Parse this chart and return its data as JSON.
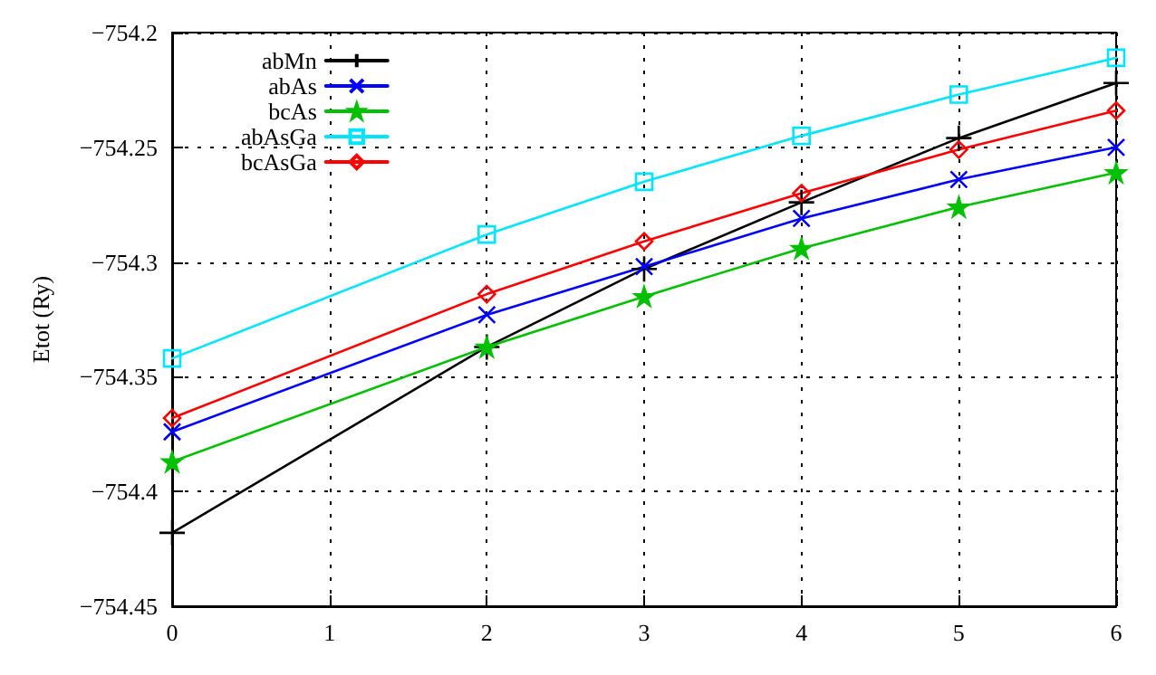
{
  "chart_data": {
    "type": "line",
    "ylabel": "Etot (Ry)",
    "xlim": [
      0,
      6
    ],
    "xticks": [
      0,
      1,
      2,
      3,
      4,
      5,
      6
    ],
    "ylim": [
      -754.45,
      -754.2
    ],
    "yticks": [
      {
        "value": -754.45,
        "label": "−754.45"
      },
      {
        "value": -754.4,
        "label": "−754.4"
      },
      {
        "value": -754.35,
        "label": "−754.35"
      },
      {
        "value": -754.3,
        "label": "−754.3"
      },
      {
        "value": -754.25,
        "label": "−754.25"
      },
      {
        "value": -754.2,
        "label": "−754.2"
      }
    ],
    "grid": true,
    "legend": "top left",
    "line_style": "solid",
    "series": [
      {
        "name": "abMn",
        "color": "#000000",
        "marker": "plus",
        "x": [
          0,
          2,
          3,
          4,
          5,
          6
        ],
        "values": [
          -754.418,
          -754.337,
          -754.303,
          -754.274,
          -754.246,
          -754.222
        ]
      },
      {
        "name": "abAs",
        "color": "#0000ff",
        "marker": "cross",
        "x": [
          0,
          2,
          3,
          4,
          5,
          6
        ],
        "values": [
          -754.374,
          -754.323,
          -754.302,
          -754.281,
          -754.264,
          -754.25
        ]
      },
      {
        "name": "bcAs",
        "color": "#00c000",
        "marker": "star",
        "x": [
          0,
          2,
          3,
          4,
          5,
          6
        ],
        "values": [
          -754.387,
          -754.337,
          -754.315,
          -754.294,
          -754.276,
          -754.261
        ]
      },
      {
        "name": "abAsGa",
        "color": "#00e5ff",
        "marker": "square",
        "x": [
          0,
          2,
          3,
          4,
          5,
          6
        ],
        "values": [
          -754.342,
          -754.288,
          -754.265,
          -754.245,
          -754.227,
          -754.211
        ]
      },
      {
        "name": "bcAsGa",
        "color": "#ff0000",
        "marker": "diamond",
        "x": [
          0,
          2,
          3,
          4,
          5,
          6
        ],
        "values": [
          -754.368,
          -754.314,
          -754.291,
          -754.27,
          -754.251,
          -754.234
        ]
      }
    ]
  }
}
